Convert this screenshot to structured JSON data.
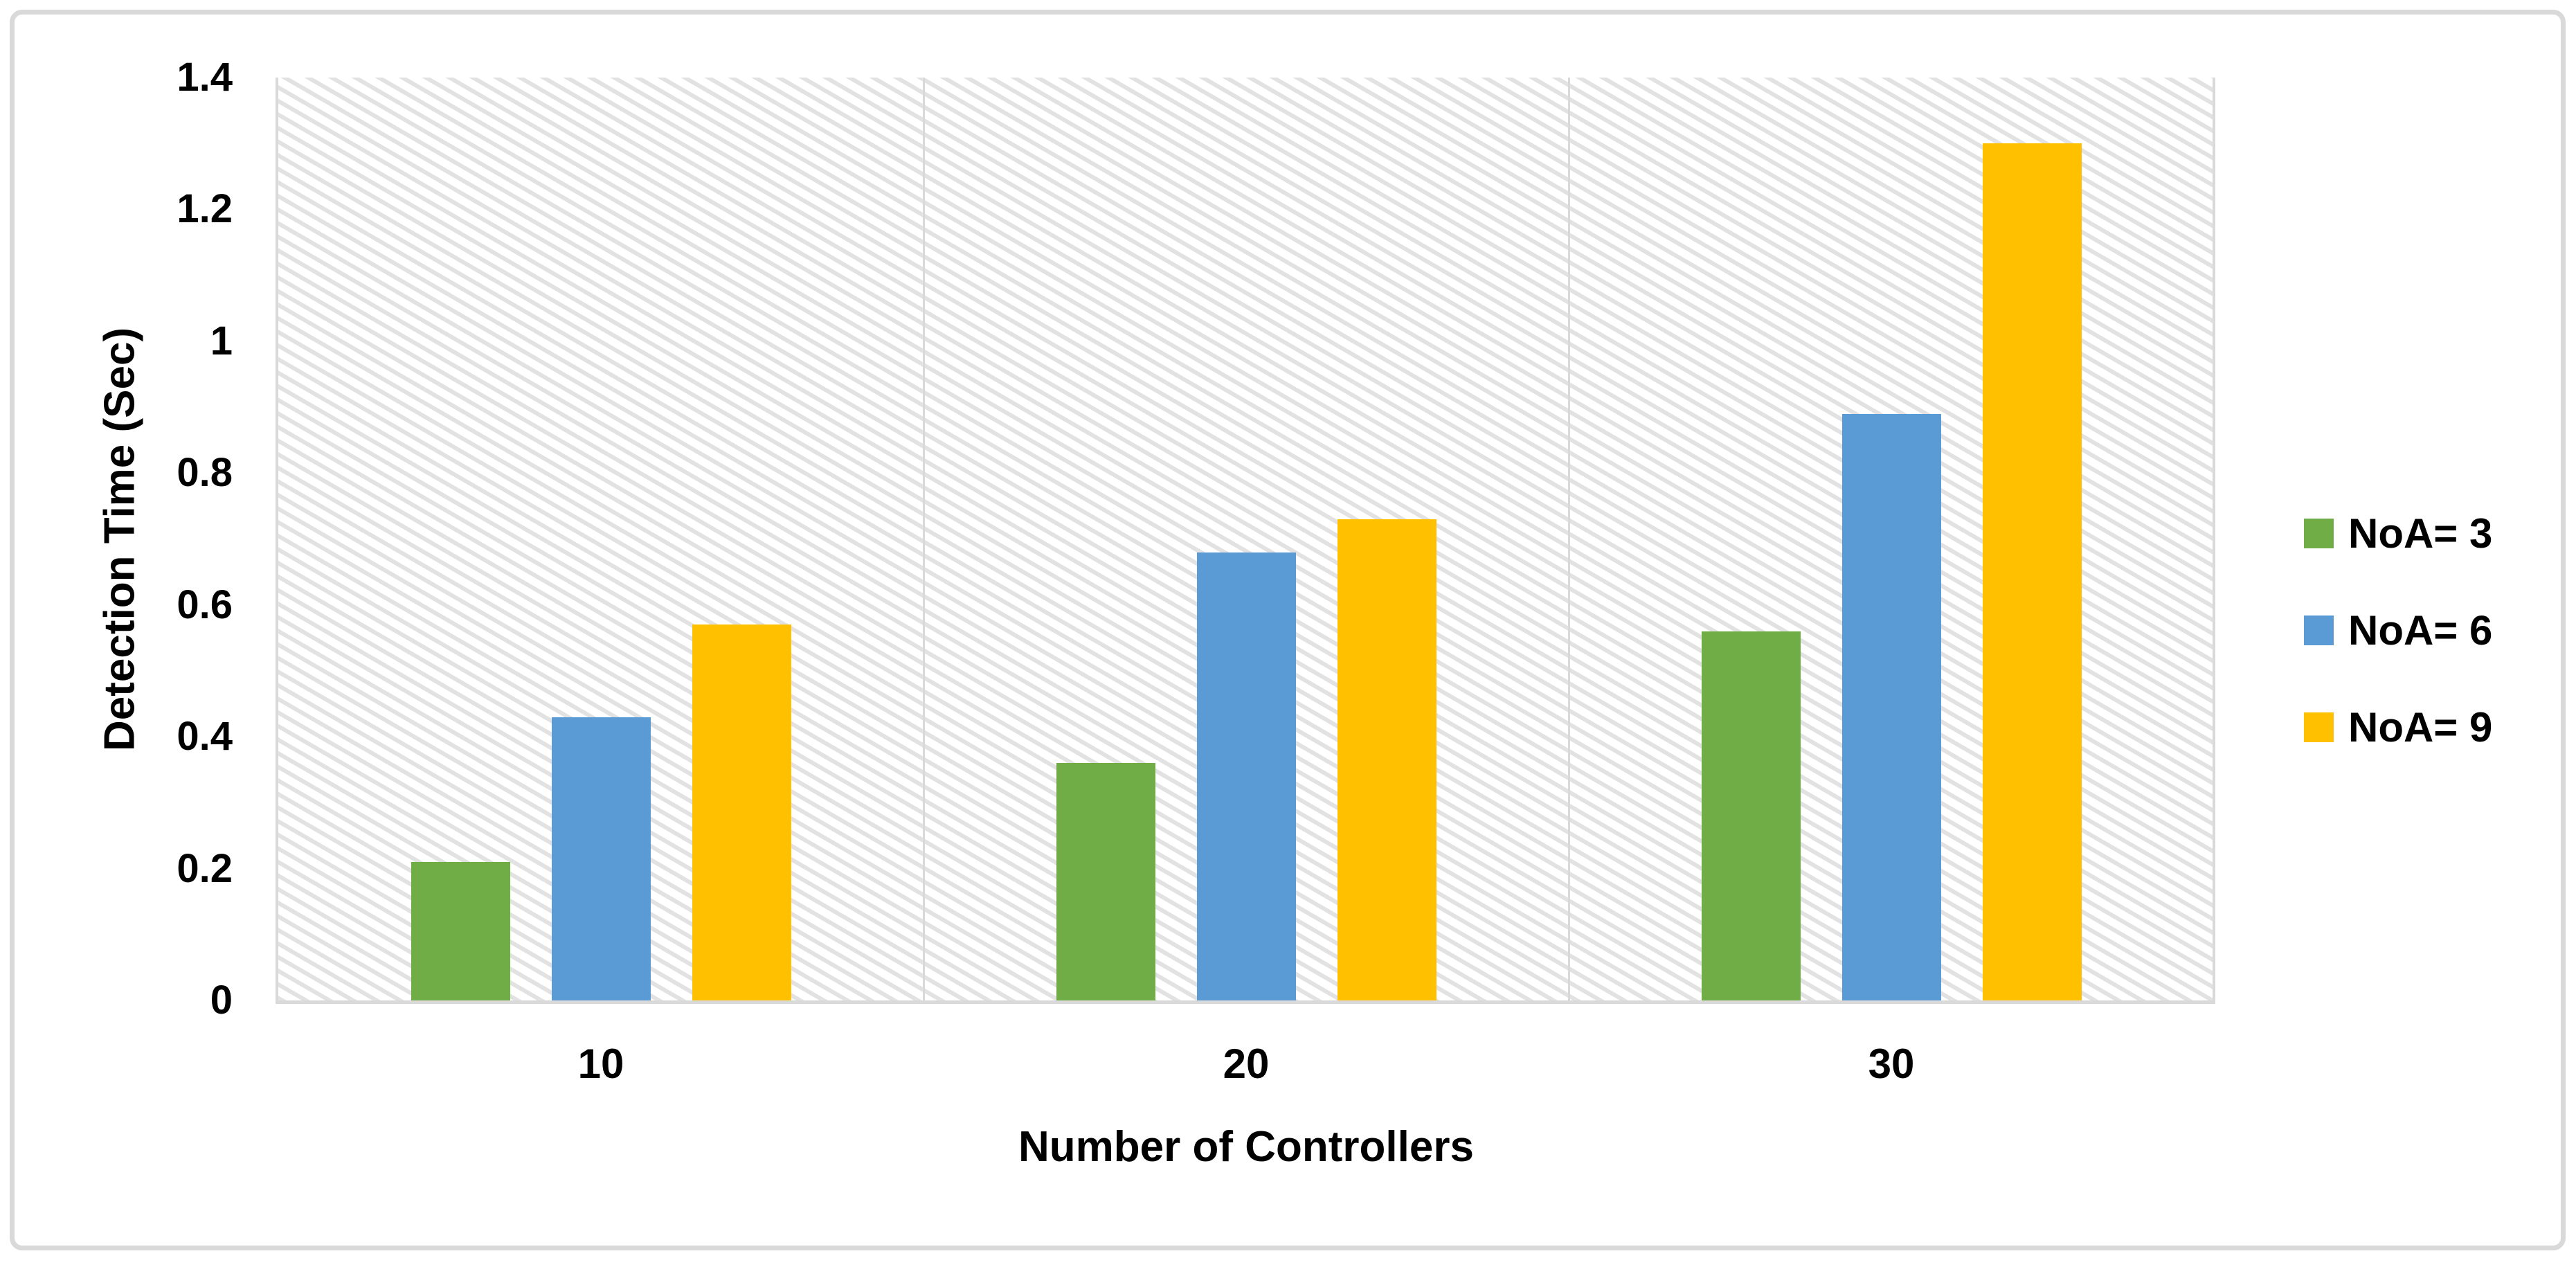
{
  "chart_data": {
    "type": "bar",
    "title": "",
    "categories": [
      "10",
      "20",
      "30"
    ],
    "series": [
      {
        "name": "NoA= 3",
        "color": "#70AD47",
        "values": [
          0.21,
          0.36,
          0.56
        ]
      },
      {
        "name": "NoA= 6",
        "color": "#5B9BD5",
        "values": [
          0.43,
          0.68,
          0.89
        ]
      },
      {
        "name": "NoA= 9",
        "color": "#FFC000",
        "values": [
          0.57,
          0.73,
          1.3
        ]
      }
    ],
    "xlabel": "Number of Controllers",
    "ylabel": "Detection Time (Sec)",
    "ylim": [
      0,
      1.4
    ],
    "yticks": [
      0,
      0.2,
      0.4,
      0.6,
      0.8,
      1,
      1.2,
      1.4
    ],
    "ytick_labels": [
      "0",
      "0.2",
      "0.4",
      "0.6",
      "0.8",
      "1",
      "1.2",
      "1.4"
    ],
    "grid": "vertical-category-separators",
    "legend_position": "right",
    "plot_background": "light-downward-diagonal-hatch"
  },
  "colors": {
    "axis_line": "#d9d9d9",
    "frame_border": "#d9d9d9",
    "hatch_stripe": "#e2e2e2",
    "text": "#000000",
    "background": "#ffffff"
  }
}
